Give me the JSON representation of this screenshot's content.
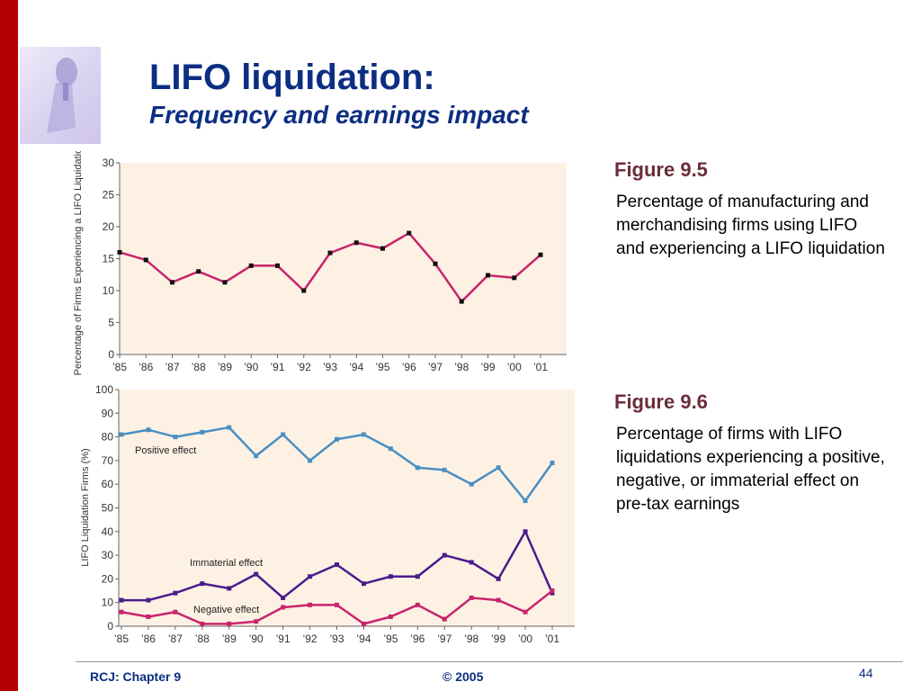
{
  "slide": {
    "title": "LIFO liquidation:",
    "subtitle": "Frequency and earnings impact"
  },
  "figures": [
    {
      "label": "Figure 9.5",
      "caption": "Percentage of manufacturing and merchandising firms using LIFO and experiencing a LIFO liquidation"
    },
    {
      "label": "Figure 9.6",
      "caption": "Percentage of firms with LIFO liquidations experiencing a positive, negative, or immaterial effect on pre-tax earnings"
    }
  ],
  "footer": {
    "left": "RCJ: Chapter 9",
    "center": "© 2005",
    "page": "44"
  },
  "colors": {
    "accent_bar": "#b30000",
    "title": "#0c2e82",
    "figure_label": "#6b2d3a",
    "plot_bg": "#fdf1e4",
    "positive": "#4a8fc1",
    "immaterial": "#4b1b8c",
    "negative": "#c8246b",
    "single": "#c8246b"
  },
  "chart_data": [
    {
      "type": "line",
      "ylabel": "Percentage of Firms Experiencing a LIFO Liquidation",
      "xlabel": "",
      "ylim": [
        0,
        30
      ],
      "yticks": [
        "0",
        "5",
        "10",
        "15",
        "20",
        "25",
        "30"
      ],
      "categories": [
        "’85",
        "’86",
        "’87",
        "’88",
        "’89",
        "’90",
        "’91",
        "’92",
        "’93",
        "’94",
        "’95",
        "’96",
        "’97",
        "’98",
        "’99",
        "’00",
        "’01"
      ],
      "series": [
        {
          "values": [
            16,
            14.8,
            11.3,
            13,
            11.3,
            13.9,
            13.9,
            10,
            15.9,
            17.5,
            16.6,
            19,
            14.2,
            8.3,
            12.4,
            12,
            15.6
          ]
        }
      ],
      "grid": false
    },
    {
      "type": "line",
      "ylabel": "LIFO Liquidation Firms (%)",
      "xlabel": "",
      "ylim": [
        0,
        100
      ],
      "yticks": [
        "0",
        "10",
        "20",
        "30",
        "40",
        "50",
        "60",
        "70",
        "80",
        "90",
        "100"
      ],
      "categories": [
        "’85",
        "’86",
        "’87",
        "’88",
        "’89",
        "’90",
        "’91",
        "’92",
        "’93",
        "’94",
        "’95",
        "’96",
        "’97",
        "’98",
        "’99",
        "’00",
        "’01"
      ],
      "series": [
        {
          "name": "Positive effect",
          "values": [
            81,
            83,
            80,
            82,
            84,
            72,
            81,
            70,
            79,
            81,
            75,
            67,
            66,
            60,
            67,
            53,
            69
          ]
        },
        {
          "name": "Immaterial effect",
          "values": [
            11,
            11,
            14,
            18,
            16,
            22,
            12,
            21,
            26,
            18,
            21,
            21,
            30,
            27,
            20,
            40,
            14
          ]
        },
        {
          "name": "Negative effect",
          "values": [
            6,
            4,
            6,
            1,
            1,
            2,
            8,
            9,
            9,
            1,
            4,
            9,
            3,
            12,
            11,
            6,
            15
          ]
        }
      ],
      "grid": false
    }
  ]
}
